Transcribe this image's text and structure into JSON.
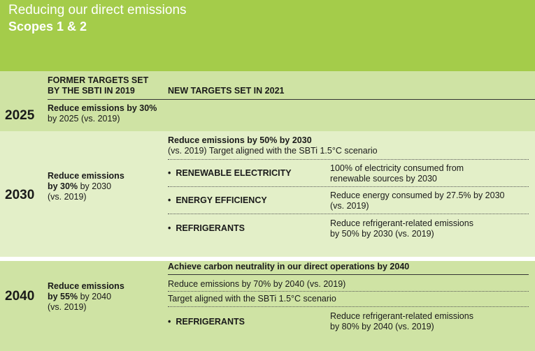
{
  "header": {
    "title": "Reducing our direct emissions",
    "subtitle": "Scopes 1 & 2"
  },
  "columns": {
    "former_line1": "FORMER TARGETS SET",
    "former_line2": "BY THE SBTI IN 2019",
    "new": "NEW TARGETS SET IN 2021"
  },
  "rows": {
    "r2025": {
      "year": "2025",
      "former_bold": "Reduce emissions by 30%",
      "former_rest": "by 2025 (vs. 2019)"
    },
    "r2030": {
      "year": "2030",
      "former_line1": "Reduce emissions",
      "former_bold2": "by 30%",
      "former_rest2": " by 2030",
      "former_line3": "(vs. 2019)",
      "new_title": "Reduce emissions by 50% by 2030",
      "new_sub": "(vs. 2019) Target aligned with the SBTi 1.5°C scenario",
      "items": [
        {
          "label": "RENEWABLE ELECTRICITY",
          "desc1": "100% of electricity consumed from",
          "desc2": "renewable sources by 2030"
        },
        {
          "label": "ENERGY EFFICIENCY",
          "desc1": "Reduce energy consumed by 27.5% by 2030",
          "desc2": "(vs. 2019)"
        },
        {
          "label": "REFRIGERANTS",
          "desc1": "Reduce refrigerant-related emissions",
          "desc2": "by 50% by 2030 (vs. 2019)"
        }
      ]
    },
    "r2040": {
      "year": "2040",
      "former_line1": "Reduce emissions",
      "former_bold2": "by 55%",
      "former_rest2": " by 2040",
      "former_line3": "(vs. 2019)",
      "new_title": "Achieve carbon neutrality in our direct operations by 2040",
      "new_line2": "Reduce emissions by 70% by 2040 (vs. 2019)",
      "new_line3": "Target aligned with the SBTi 1.5°C scenario",
      "item": {
        "label": "REFRIGERANTS",
        "desc1": "Reduce refrigerant-related emissions",
        "desc2": "by 80% by 2040 (vs. 2019)"
      }
    }
  },
  "bullet": "•"
}
